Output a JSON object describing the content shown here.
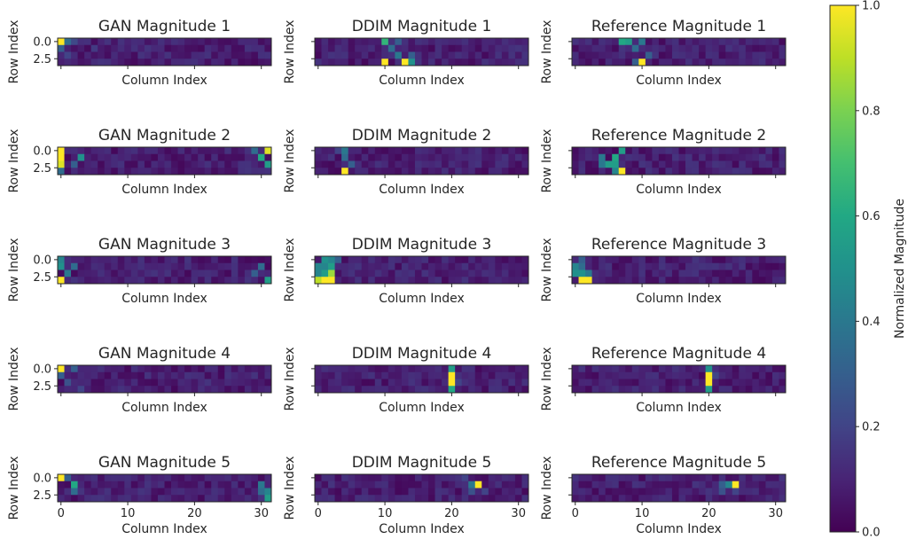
{
  "chart_data": {
    "type": "heatmap",
    "rows": 4,
    "cols": 32,
    "row_tick_labels": [
      "0.0",
      "2.5"
    ],
    "row_tick_values": [
      0,
      2.5
    ],
    "col_tick_labels": [
      "0",
      "10",
      "20",
      "30"
    ],
    "col_tick_values": [
      0,
      10,
      20,
      30
    ],
    "xlabel": "Column Index",
    "ylabel": "Row Index",
    "colormap": "viridis",
    "colorbar": {
      "label": "Normalized Magnitude",
      "range": [
        0.0,
        1.0
      ],
      "tick_values": [
        0.0,
        0.2,
        0.4,
        0.6,
        0.8,
        1.0
      ],
      "tick_labels": [
        "0.0",
        "0.2",
        "0.4",
        "0.6",
        "0.8",
        "1.0"
      ]
    },
    "panels": [
      {
        "title": "GAN Magnitude 1",
        "peaks": [
          {
            "r": 0,
            "c": 0,
            "v": 1.0
          },
          {
            "r": 0,
            "c": 1,
            "v": 0.35
          },
          {
            "r": 1,
            "c": 0,
            "v": 0.3
          },
          {
            "r": 0,
            "c": 2,
            "v": 0.22
          },
          {
            "r": 2,
            "c": 1,
            "v": 0.2
          },
          {
            "r": 1,
            "c": 5,
            "v": 0.17
          }
        ]
      },
      {
        "title": "DDIM Magnitude 1",
        "peaks": [
          {
            "r": 3,
            "c": 10,
            "v": 1.0
          },
          {
            "r": 3,
            "c": 13,
            "v": 1.0
          },
          {
            "r": 0,
            "c": 10,
            "v": 0.65
          },
          {
            "r": 2,
            "c": 12,
            "v": 0.4
          },
          {
            "r": 1,
            "c": 11,
            "v": 0.35
          },
          {
            "r": 3,
            "c": 14,
            "v": 0.5
          },
          {
            "r": 0,
            "c": 12,
            "v": 0.3
          },
          {
            "r": 2,
            "c": 14,
            "v": 0.3
          }
        ]
      },
      {
        "title": "Reference Magnitude 1",
        "peaks": [
          {
            "r": 3,
            "c": 10,
            "v": 1.0
          },
          {
            "r": 0,
            "c": 7,
            "v": 0.6
          },
          {
            "r": 0,
            "c": 8,
            "v": 0.55
          },
          {
            "r": 1,
            "c": 9,
            "v": 0.35
          },
          {
            "r": 0,
            "c": 10,
            "v": 0.4
          },
          {
            "r": 2,
            "c": 11,
            "v": 0.3
          },
          {
            "r": 3,
            "c": 9,
            "v": 0.3
          }
        ]
      },
      {
        "title": "GAN Magnitude 2",
        "peaks": [
          {
            "r": 0,
            "c": 0,
            "v": 1.0
          },
          {
            "r": 1,
            "c": 0,
            "v": 1.0
          },
          {
            "r": 2,
            "c": 0,
            "v": 0.95
          },
          {
            "r": 0,
            "c": 31,
            "v": 0.95
          },
          {
            "r": 1,
            "c": 30,
            "v": 0.6
          },
          {
            "r": 2,
            "c": 31,
            "v": 0.55
          },
          {
            "r": 1,
            "c": 3,
            "v": 0.5
          },
          {
            "r": 0,
            "c": 29,
            "v": 0.35
          },
          {
            "r": 3,
            "c": 0,
            "v": 0.35
          },
          {
            "r": 2,
            "c": 2,
            "v": 0.3
          }
        ]
      },
      {
        "title": "DDIM Magnitude 2",
        "peaks": [
          {
            "r": 3,
            "c": 4,
            "v": 1.0
          },
          {
            "r": 0,
            "c": 4,
            "v": 0.4
          },
          {
            "r": 1,
            "c": 4,
            "v": 0.35
          },
          {
            "r": 2,
            "c": 5,
            "v": 0.3
          },
          {
            "r": 0,
            "c": 3,
            "v": 0.2
          }
        ]
      },
      {
        "title": "Reference Magnitude 2",
        "peaks": [
          {
            "r": 3,
            "c": 7,
            "v": 1.0
          },
          {
            "r": 1,
            "c": 6,
            "v": 0.6
          },
          {
            "r": 2,
            "c": 5,
            "v": 0.55
          },
          {
            "r": 0,
            "c": 7,
            "v": 0.55
          },
          {
            "r": 2,
            "c": 6,
            "v": 0.55
          },
          {
            "r": 1,
            "c": 4,
            "v": 0.4
          },
          {
            "r": 2,
            "c": 4,
            "v": 0.4
          },
          {
            "r": 3,
            "c": 6,
            "v": 0.45
          }
        ]
      },
      {
        "title": "GAN Magnitude 3",
        "peaks": [
          {
            "r": 3,
            "c": 0,
            "v": 1.0
          },
          {
            "r": 0,
            "c": 0,
            "v": 0.45
          },
          {
            "r": 1,
            "c": 0,
            "v": 0.5
          },
          {
            "r": 2,
            "c": 1,
            "v": 0.4
          },
          {
            "r": 1,
            "c": 2,
            "v": 0.35
          },
          {
            "r": 3,
            "c": 31,
            "v": 0.55
          },
          {
            "r": 1,
            "c": 30,
            "v": 0.35
          },
          {
            "r": 2,
            "c": 29,
            "v": 0.3
          }
        ]
      },
      {
        "title": "DDIM Magnitude 3",
        "peaks": [
          {
            "r": 3,
            "c": 1,
            "v": 1.0
          },
          {
            "r": 3,
            "c": 2,
            "v": 1.0
          },
          {
            "r": 2,
            "c": 2,
            "v": 0.85
          },
          {
            "r": 3,
            "c": 0,
            "v": 0.9
          },
          {
            "r": 0,
            "c": 1,
            "v": 0.5
          },
          {
            "r": 1,
            "c": 2,
            "v": 0.55
          },
          {
            "r": 2,
            "c": 1,
            "v": 0.55
          },
          {
            "r": 1,
            "c": 0,
            "v": 0.45
          },
          {
            "r": 0,
            "c": 2,
            "v": 0.45
          },
          {
            "r": 1,
            "c": 1,
            "v": 0.45
          },
          {
            "r": 2,
            "c": 0,
            "v": 0.45
          },
          {
            "r": 0,
            "c": 3,
            "v": 0.3
          }
        ]
      },
      {
        "title": "Reference Magnitude 3",
        "peaks": [
          {
            "r": 3,
            "c": 1,
            "v": 1.0
          },
          {
            "r": 3,
            "c": 2,
            "v": 1.0
          },
          {
            "r": 2,
            "c": 1,
            "v": 0.5
          },
          {
            "r": 1,
            "c": 0,
            "v": 0.45
          },
          {
            "r": 2,
            "c": 0,
            "v": 0.5
          },
          {
            "r": 1,
            "c": 1,
            "v": 0.35
          },
          {
            "r": 2,
            "c": 2,
            "v": 0.4
          },
          {
            "r": 0,
            "c": 1,
            "v": 0.3
          }
        ]
      },
      {
        "title": "GAN Magnitude 4",
        "peaks": [
          {
            "r": 0,
            "c": 0,
            "v": 1.0
          },
          {
            "r": 1,
            "c": 0,
            "v": 0.3
          },
          {
            "r": 0,
            "c": 2,
            "v": 0.3
          },
          {
            "r": 2,
            "c": 1,
            "v": 0.25
          },
          {
            "r": 3,
            "c": 3,
            "v": 0.2
          }
        ]
      },
      {
        "title": "DDIM Magnitude 4",
        "peaks": [
          {
            "r": 1,
            "c": 20,
            "v": 1.0
          },
          {
            "r": 2,
            "c": 20,
            "v": 1.0
          },
          {
            "r": 0,
            "c": 20,
            "v": 0.55
          },
          {
            "r": 3,
            "c": 20,
            "v": 0.6
          },
          {
            "r": 2,
            "c": 21,
            "v": 0.2
          }
        ]
      },
      {
        "title": "Reference Magnitude 4",
        "peaks": [
          {
            "r": 1,
            "c": 20,
            "v": 1.0
          },
          {
            "r": 2,
            "c": 20,
            "v": 1.0
          },
          {
            "r": 0,
            "c": 20,
            "v": 0.5
          },
          {
            "r": 3,
            "c": 20,
            "v": 0.55
          },
          {
            "r": 1,
            "c": 21,
            "v": 0.2
          }
        ]
      },
      {
        "title": "GAN Magnitude 5",
        "peaks": [
          {
            "r": 0,
            "c": 0,
            "v": 1.0
          },
          {
            "r": 3,
            "c": 31,
            "v": 0.55
          },
          {
            "r": 1,
            "c": 2,
            "v": 0.6
          },
          {
            "r": 2,
            "c": 31,
            "v": 0.45
          },
          {
            "r": 1,
            "c": 30,
            "v": 0.4
          },
          {
            "r": 2,
            "c": 30,
            "v": 0.35
          },
          {
            "r": 0,
            "c": 1,
            "v": 0.3
          },
          {
            "r": 2,
            "c": 2,
            "v": 0.35
          }
        ]
      },
      {
        "title": "DDIM Magnitude 5",
        "peaks": [
          {
            "r": 1,
            "c": 24,
            "v": 1.0
          },
          {
            "r": 1,
            "c": 23,
            "v": 0.4
          },
          {
            "r": 2,
            "c": 23,
            "v": 0.25
          },
          {
            "r": 0,
            "c": 22,
            "v": 0.2
          },
          {
            "r": 2,
            "c": 25,
            "v": 0.2
          }
        ]
      },
      {
        "title": "Reference Magnitude 5",
        "peaks": [
          {
            "r": 1,
            "c": 24,
            "v": 1.0
          },
          {
            "r": 1,
            "c": 23,
            "v": 0.45
          },
          {
            "r": 2,
            "c": 22,
            "v": 0.25
          },
          {
            "r": 1,
            "c": 22,
            "v": 0.3
          },
          {
            "r": 2,
            "c": 24,
            "v": 0.2
          }
        ]
      }
    ]
  }
}
